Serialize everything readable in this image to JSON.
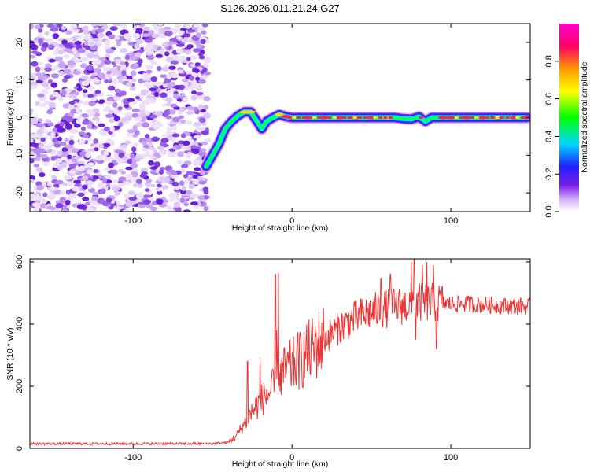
{
  "chart_data": [
    {
      "type": "heatmap",
      "title": "S126.2026.011.21.24.G27",
      "xlabel": "Height of straight line (km)",
      "ylabel": "Frequency (Hz)",
      "xlim": [
        -165,
        150
      ],
      "ylim": [
        -25,
        25
      ],
      "xticks": [
        -100,
        0,
        100
      ],
      "xtick_labels": [
        "-100",
        "0",
        "100"
      ],
      "yticks": [
        -20,
        -10,
        0,
        10,
        20
      ],
      "ytick_labels": [
        "-20",
        "-10",
        "0",
        "10",
        "20"
      ],
      "noise_region_x": [
        -165,
        -53
      ],
      "ridge": {
        "x": [
          -54,
          -50,
          -46,
          -42,
          -38,
          -34,
          -30,
          -26,
          -22,
          -19,
          -16,
          -12,
          -8,
          -4,
          0,
          10,
          20,
          30,
          40,
          50,
          60,
          65,
          70,
          75,
          80,
          84,
          88,
          95,
          100,
          110,
          120,
          130,
          140,
          148
        ],
        "y": [
          -13,
          -10,
          -7,
          -3,
          -1,
          0.5,
          1.5,
          1.5,
          -1,
          -3,
          -1,
          0,
          0.8,
          0.3,
          0,
          0,
          0,
          0,
          0,
          0,
          0,
          0,
          -0.3,
          -0.4,
          0.2,
          -1,
          0,
          0,
          0,
          0,
          0,
          0,
          0,
          0
        ],
        "amplitude": [
          0.45,
          0.5,
          0.6,
          0.65,
          0.7,
          0.8,
          0.9,
          0.85,
          0.6,
          0.5,
          0.7,
          0.8,
          0.9,
          0.95,
          1.0,
          1.0,
          1.0,
          1.0,
          1.0,
          1.0,
          0.9,
          0.8,
          0.6,
          0.6,
          0.65,
          0.5,
          0.8,
          0.95,
          1.0,
          1.0,
          1.0,
          1.0,
          1.0,
          1.0
        ]
      },
      "colorbar": {
        "label": "Normalized spectral amplitude",
        "range": [
          0,
          1
        ],
        "ticks": [
          0,
          0.2,
          0.4,
          0.6,
          0.8
        ],
        "tick_labels": [
          "0.0",
          "0.2",
          "0.4",
          "0.6",
          "0.8"
        ],
        "colormap": [
          "#ffffff",
          "#d8b8f8",
          "#7b1fe8",
          "#2020ff",
          "#00d8ff",
          "#00ff00",
          "#ffff00",
          "#ff9900",
          "#ff0066",
          "#ff00cc"
        ]
      }
    },
    {
      "type": "line",
      "title": "",
      "xlabel": "Height of straight line (km)",
      "ylabel": "SNR (10 * v/v)",
      "xlim": [
        -165,
        150
      ],
      "ylim": [
        0,
        610
      ],
      "xticks": [
        -100,
        0,
        100
      ],
      "xtick_labels": [
        "-100",
        "0",
        "100"
      ],
      "yticks": [
        0,
        200,
        400,
        600
      ],
      "ytick_labels": [
        "0",
        "200",
        "400",
        "600"
      ],
      "series": [
        {
          "name": "SNR",
          "color": "#ee3333",
          "envelope_x": [
            -165,
            -120,
            -80,
            -50,
            -40,
            -35,
            -30,
            -25,
            -20,
            -15,
            -10,
            -8,
            -5,
            0,
            5,
            10,
            15,
            20,
            30,
            40,
            50,
            60,
            70,
            80,
            90,
            100,
            110,
            120,
            130,
            140,
            150
          ],
          "envelope_y": [
            15,
            15,
            15,
            15,
            20,
            40,
            80,
            120,
            150,
            175,
            200,
            230,
            245,
            265,
            285,
            305,
            330,
            350,
            390,
            420,
            440,
            450,
            460,
            470,
            470,
            465,
            465,
            462,
            460,
            458,
            458
          ],
          "spikes": [
            {
              "x": -8.5,
              "y": 565
            },
            {
              "x": -9.5,
              "y": 380
            },
            {
              "x": -10.5,
              "y": 560
            },
            {
              "x": -28,
              "y": 280
            },
            {
              "x": -20,
              "y": 290
            },
            {
              "x": 75,
              "y": 600
            },
            {
              "x": 77,
              "y": 610
            },
            {
              "x": 82,
              "y": 590
            },
            {
              "x": 85,
              "y": 600
            },
            {
              "x": 89,
              "y": 590
            },
            {
              "x": 91,
              "y": 320
            },
            {
              "x": 78,
              "y": 350
            },
            {
              "x": 62,
              "y": 560
            },
            {
              "x": 56,
              "y": 545
            }
          ]
        }
      ]
    }
  ]
}
